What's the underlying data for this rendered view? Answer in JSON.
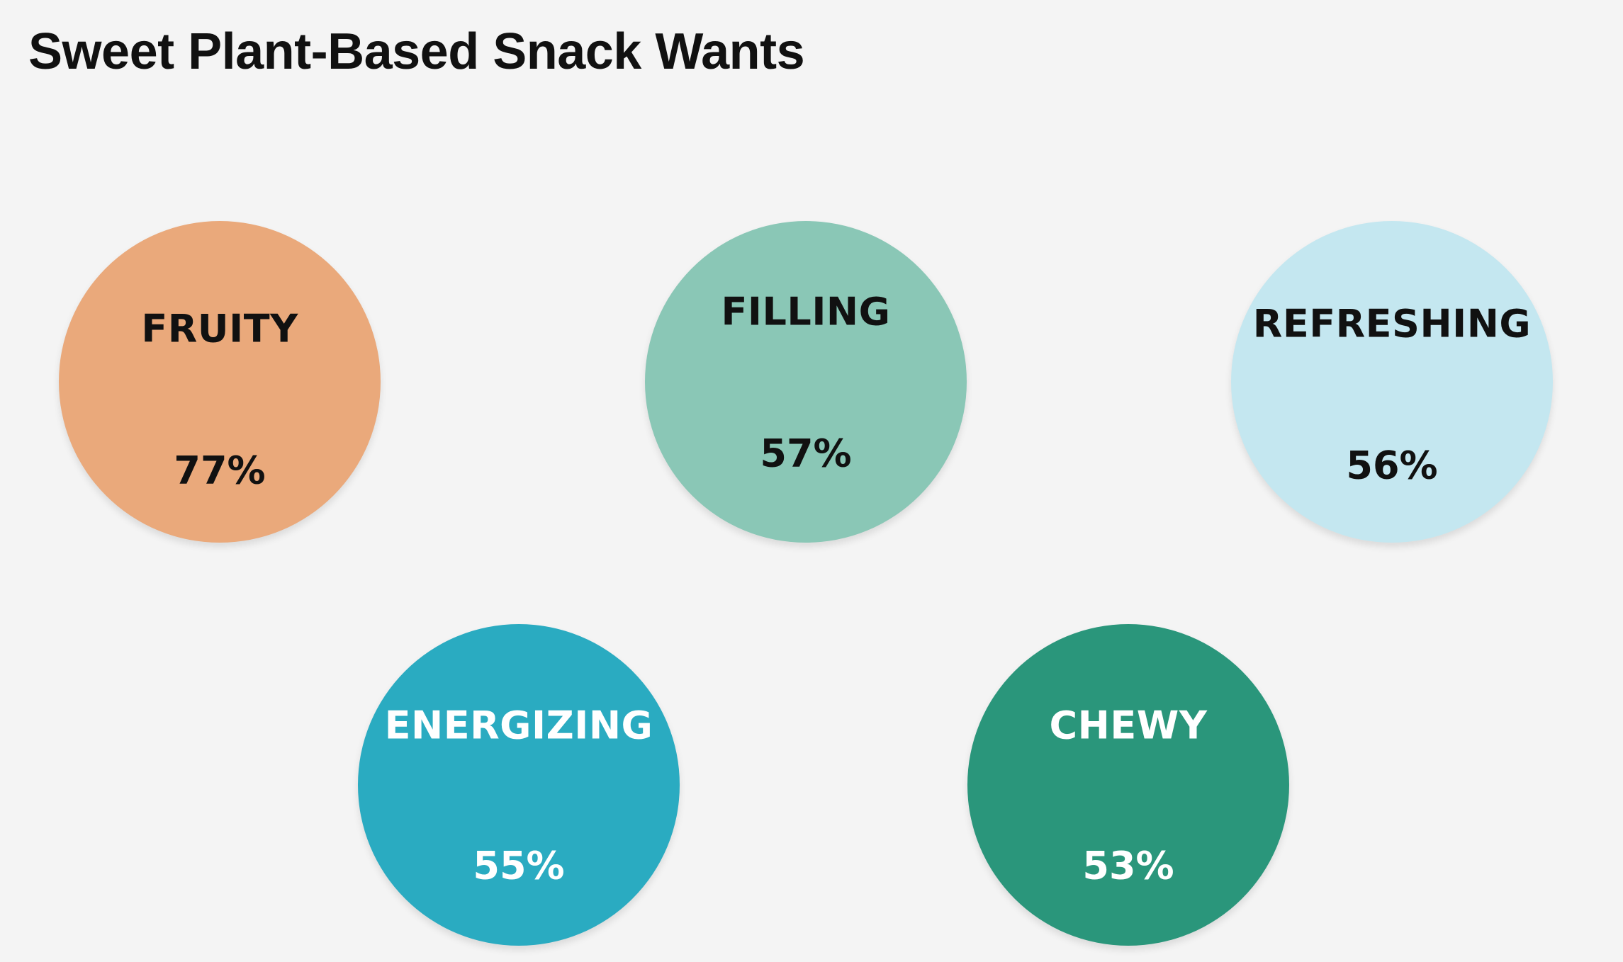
{
  "chart_data": {
    "type": "bubble",
    "title": "Sweet Plant-Based Snack Wants",
    "categories": [
      "FRUITY",
      "FILLING",
      "REFRESHING",
      "ENERGIZING",
      "CHEWY"
    ],
    "values": [
      77,
      57,
      56,
      55,
      53
    ],
    "value_labels": [
      "77%",
      "57%",
      "56%",
      "55%",
      "53%"
    ],
    "colors": [
      "#eaa97b",
      "#8ac7b6",
      "#c4e7f0",
      "#2aabc1",
      "#2a967b"
    ],
    "text_colors": [
      "#111111",
      "#111111",
      "#111111",
      "#ffffff",
      "#ffffff"
    ]
  }
}
